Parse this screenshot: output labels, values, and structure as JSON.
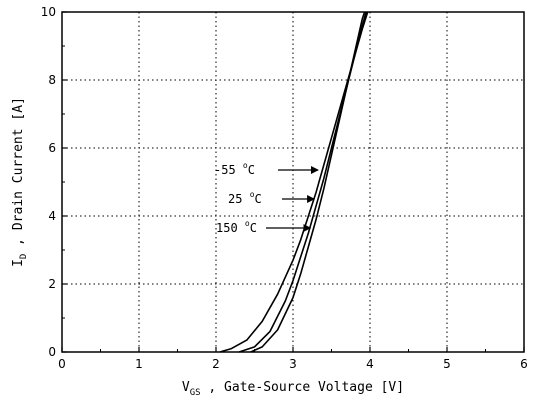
{
  "chart_data": {
    "type": "line",
    "xlabel": {
      "symbol": "V",
      "subscript": "GS",
      "rest": " , Gate-Source Voltage  [V]"
    },
    "ylabel": {
      "symbol": "I",
      "subscript": "D",
      "rest": " , Drain Current  [A]"
    },
    "xlim": [
      0,
      6
    ],
    "ylim": [
      0,
      10
    ],
    "x_ticks": [
      0,
      1,
      2,
      3,
      4,
      5,
      6
    ],
    "y_ticks": [
      0,
      2,
      4,
      6,
      8,
      10
    ],
    "grid": "dotted",
    "legend": "inline annotations with arrows",
    "series": [
      {
        "name": "-55 °C",
        "x": [
          2.05,
          2.2,
          2.4,
          2.6,
          2.8,
          3.0,
          3.1,
          3.2,
          3.3,
          3.4,
          3.5,
          3.6,
          3.7,
          3.8,
          3.9,
          3.97
        ],
        "y": [
          0.0,
          0.1,
          0.35,
          0.9,
          1.7,
          2.7,
          3.3,
          4.0,
          4.7,
          5.5,
          6.3,
          7.1,
          7.9,
          8.7,
          9.5,
          10.0
        ]
      },
      {
        "name": "25 °C",
        "x": [
          2.3,
          2.5,
          2.7,
          2.9,
          3.0,
          3.1,
          3.2,
          3.3,
          3.4,
          3.5,
          3.6,
          3.7,
          3.8,
          3.9,
          3.95
        ],
        "y": [
          0.0,
          0.15,
          0.6,
          1.5,
          2.1,
          2.8,
          3.5,
          4.3,
          5.1,
          6.0,
          6.9,
          7.8,
          8.7,
          9.6,
          10.0
        ]
      },
      {
        "name": "150 °C",
        "x": [
          2.45,
          2.6,
          2.8,
          3.0,
          3.1,
          3.2,
          3.3,
          3.4,
          3.5,
          3.6,
          3.7,
          3.8,
          3.9,
          3.93
        ],
        "y": [
          0.0,
          0.15,
          0.65,
          1.6,
          2.3,
          3.1,
          3.9,
          4.8,
          5.8,
          6.8,
          7.8,
          8.8,
          9.8,
          10.0
        ]
      }
    ],
    "annotations": [
      {
        "number": "-55",
        "unit": "C",
        "deg": "o",
        "arrow_to_x": 3.35,
        "arrow_to_y": 4.9
      },
      {
        "number": "25",
        "unit": "C",
        "deg": "o",
        "arrow_to_x": 3.3,
        "arrow_to_y": 4.4
      },
      {
        "number": "150",
        "unit": "C",
        "deg": "o",
        "arrow_to_x": 3.25,
        "arrow_to_y": 3.6
      }
    ]
  }
}
